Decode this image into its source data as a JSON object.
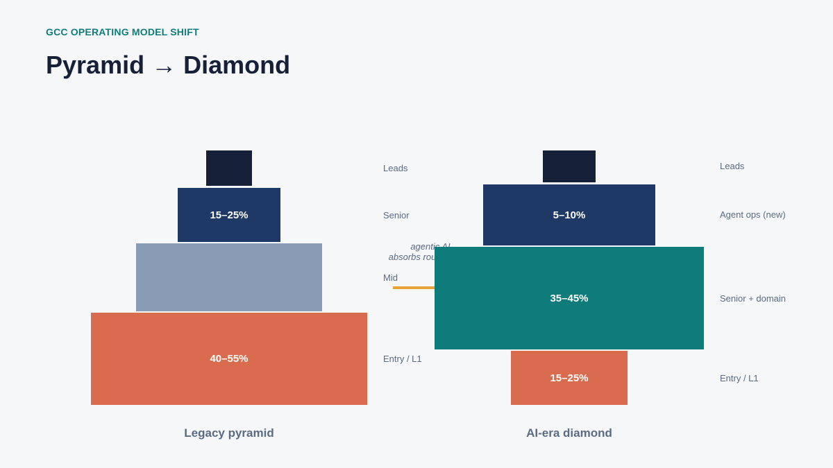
{
  "header": {
    "eyebrow": "GCC OPERATING MODEL SHIFT",
    "title": "Pyramid → Diamond"
  },
  "colors": {
    "leads": "#162039",
    "senior": "#1f3966",
    "mid": "#8a9bb6",
    "entry": "#d96c4f",
    "teal": "#0f7b7b",
    "arrow": "#e8a43c"
  },
  "legacy": {
    "caption": "Legacy pyramid",
    "tiers": {
      "leads": {
        "label": "Leads",
        "value": ""
      },
      "senior": {
        "label": "Senior",
        "value": "15–25%"
      },
      "mid": {
        "label": "Mid",
        "value": ""
      },
      "entry": {
        "label": "Entry / L1",
        "value": "40–55%"
      }
    }
  },
  "transition": {
    "note_line1": "agentic AI",
    "note_line2": "absorbs routine work"
  },
  "diamond": {
    "caption": "AI-era diamond",
    "tiers": {
      "leads": {
        "label": "Leads",
        "value": ""
      },
      "agent_ops": {
        "label": "Agent ops (new)",
        "value": "5–10%"
      },
      "senior_domain": {
        "label": "Senior + domain",
        "value": "35–45%"
      },
      "entry": {
        "label": "Entry / L1",
        "value": "15–25%"
      }
    }
  }
}
